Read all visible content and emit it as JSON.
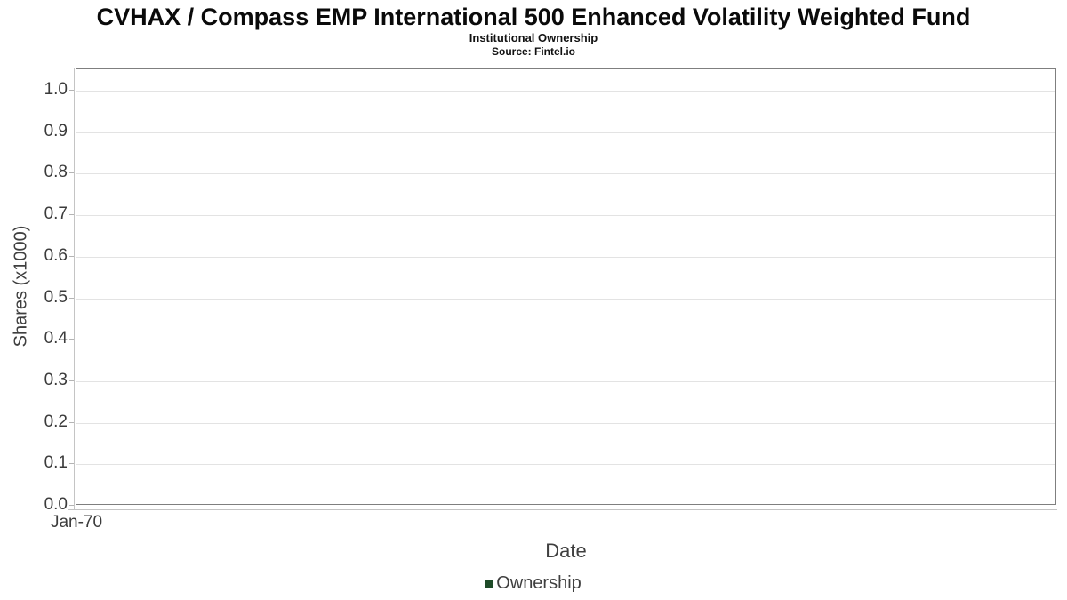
{
  "header": {
    "title": "CVHAX / Compass EMP International 500 Enhanced Volatility Weighted Fund",
    "subtitle": "Institutional Ownership",
    "source": "Source: Fintel.io"
  },
  "chart_data": {
    "type": "line",
    "title": "CVHAX / Compass EMP International 500 Enhanced Volatility Weighted Fund",
    "subtitle": "Institutional Ownership",
    "source": "Source: Fintel.io",
    "xlabel": "Date",
    "ylabel": "Shares (x1000)",
    "x_tick_labels": [
      "Jan-70"
    ],
    "y_tick_labels": [
      "0.0",
      "0.1",
      "0.2",
      "0.3",
      "0.4",
      "0.5",
      "0.6",
      "0.7",
      "0.8",
      "0.9",
      "1.0"
    ],
    "y_tick_values": [
      0.0,
      0.1,
      0.2,
      0.3,
      0.4,
      0.5,
      0.6,
      0.7,
      0.8,
      0.9,
      1.0
    ],
    "ylim": [
      0.0,
      1.05
    ],
    "grid": "horizontal-only",
    "legend_position": "bottom-center",
    "series": [
      {
        "name": "Ownership",
        "color": "#1e4b28",
        "x": [],
        "values": []
      }
    ]
  },
  "colors": {
    "background": "#ffffff",
    "plot_border": "#7f7f7f",
    "axis_line": "#c4c4c4",
    "tick_mark": "#b4b4b4",
    "gridline": "#e3e3e3",
    "title_text": "#0a0a0a",
    "label_text": "#3f3f3f",
    "tick_text": "#3b3b3b",
    "legend_marker": "#1e4b28"
  }
}
